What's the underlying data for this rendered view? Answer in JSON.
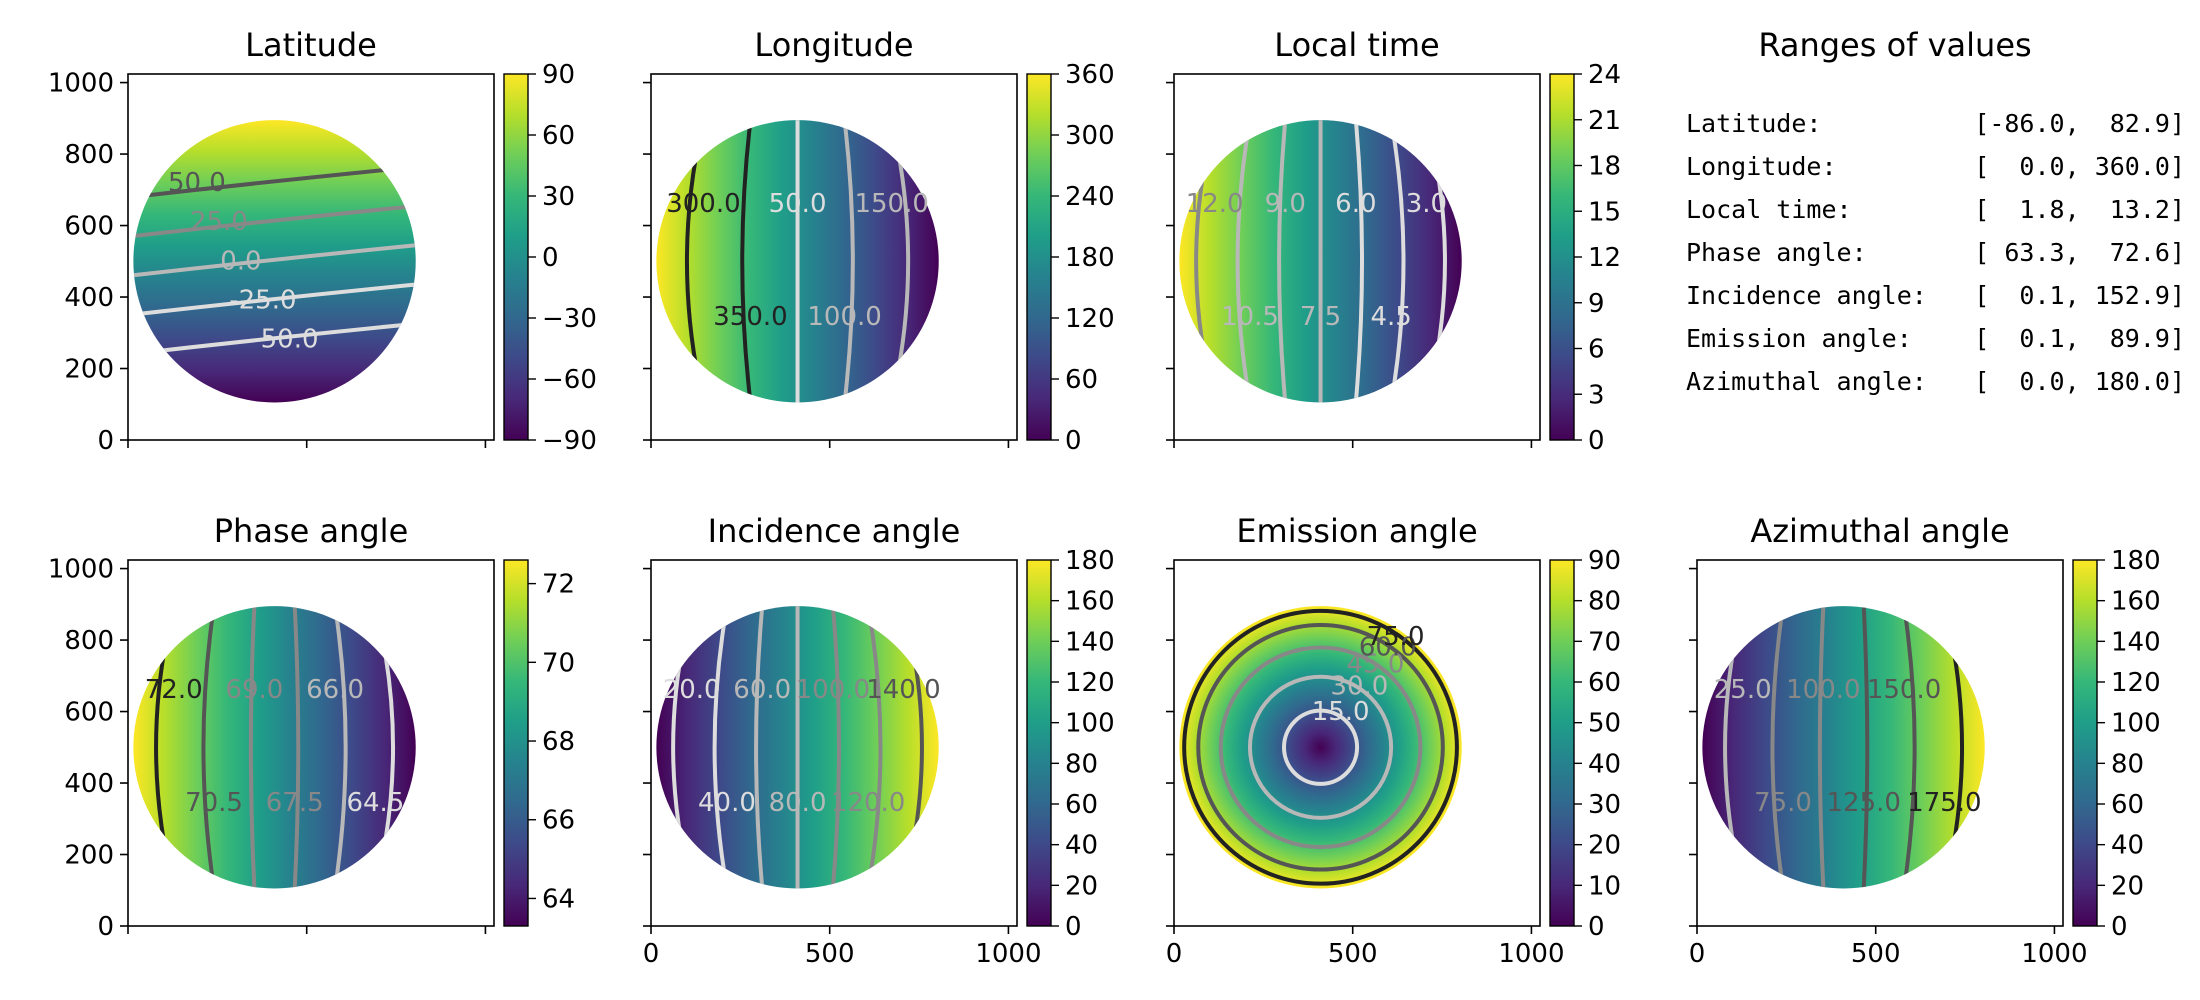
{
  "ranges_panel": {
    "title": "Ranges of values",
    "rows": [
      {
        "label": "Latitude:",
        "value": "[-86.0,  82.9]"
      },
      {
        "label": "Longitude:",
        "value": "[  0.0, 360.0]"
      },
      {
        "label": "Local time:",
        "value": "[  1.8,  13.2]"
      },
      {
        "label": "Phase angle:",
        "value": "[ 63.3,  72.6]"
      },
      {
        "label": "Incidence angle:",
        "value": "[  0.1, 152.9]"
      },
      {
        "label": "Emission angle:",
        "value": "[  0.1,  89.9]"
      },
      {
        "label": "Azimuthal angle:",
        "value": "[  0.0, 180.0]"
      }
    ]
  },
  "colormap": "viridis",
  "contour_colors": [
    "#222222",
    "#555555",
    "#888888",
    "#b8b8b8",
    "#dddddd"
  ],
  "chart_data": [
    {
      "type": "heatmap",
      "title": "Latitude",
      "xlim": [
        0,
        1024
      ],
      "ylim": [
        0,
        1024
      ],
      "xticks": [
        "",
        "",
        ""
      ],
      "yticks": [
        "0",
        "200",
        "400",
        "600",
        "800",
        "1000"
      ],
      "colorbar": {
        "min": -90,
        "max": 90,
        "ticks": [
          "90",
          "60",
          "30",
          "0",
          "−30",
          "−60",
          "−90"
        ]
      },
      "disk": {
        "center": [
          410,
          500
        ],
        "radius": 395
      },
      "contours": [
        {
          "label": "50.0",
          "level": 50,
          "shade": 1
        },
        {
          "label": "25.0",
          "level": 25,
          "shade": 2
        },
        {
          "label": "0.0",
          "level": 0,
          "shade": 3
        },
        {
          "label": "-25.0",
          "level": -25,
          "shade": 4
        },
        {
          "label": "-50.0",
          "level": -50,
          "shade": 4
        }
      ]
    },
    {
      "type": "heatmap",
      "title": "Longitude",
      "xlim": [
        0,
        1024
      ],
      "ylim": [
        0,
        1024
      ],
      "xticks": [
        "",
        "",
        ""
      ],
      "yticks": [
        "",
        "",
        "",
        "",
        "",
        ""
      ],
      "colorbar": {
        "min": 0,
        "max": 360,
        "ticks": [
          "360",
          "300",
          "240",
          "180",
          "120",
          "60",
          "0"
        ]
      },
      "disk": {
        "center": [
          410,
          500
        ],
        "radius": 395
      },
      "contours": [
        {
          "label": "300.0",
          "level": 300,
          "shade": 0
        },
        {
          "label": "350.0",
          "level": 350,
          "shade": 0
        },
        {
          "label": "50.0",
          "level": 50,
          "shade": 4
        },
        {
          "label": "100.0",
          "level": 100,
          "shade": 3
        },
        {
          "label": "150.0",
          "level": 150,
          "shade": 3
        }
      ]
    },
    {
      "type": "heatmap",
      "title": "Local time",
      "xlim": [
        0,
        1024
      ],
      "ylim": [
        0,
        1024
      ],
      "xticks": [
        "",
        "",
        ""
      ],
      "yticks": [
        "",
        "",
        "",
        "",
        "",
        ""
      ],
      "colorbar": {
        "min": 0,
        "max": 24,
        "ticks": [
          "24",
          "21",
          "18",
          "15",
          "12",
          "9",
          "6",
          "3",
          "0"
        ]
      },
      "disk": {
        "center": [
          410,
          500
        ],
        "radius": 395
      },
      "contours": [
        {
          "label": "12.0",
          "level": 12,
          "shade": 2
        },
        {
          "label": "10.5",
          "level": 10.5,
          "shade": 3
        },
        {
          "label": "9.0",
          "level": 9,
          "shade": 3
        },
        {
          "label": "7.5",
          "level": 7.5,
          "shade": 3
        },
        {
          "label": "6.0",
          "level": 6,
          "shade": 4
        },
        {
          "label": "4.5",
          "level": 4.5,
          "shade": 4
        },
        {
          "label": "3.0",
          "level": 3,
          "shade": 4
        }
      ]
    },
    {
      "type": "heatmap",
      "title": "Phase angle",
      "xlim": [
        0,
        1024
      ],
      "ylim": [
        0,
        1024
      ],
      "xticks": [
        "",
        "",
        ""
      ],
      "yticks": [
        "0",
        "200",
        "400",
        "600",
        "800",
        "1000"
      ],
      "colorbar": {
        "min": 63.3,
        "max": 72.6,
        "ticks": [
          "72",
          "70",
          "68",
          "66",
          "64"
        ],
        "tick_values": [
          72,
          70,
          68,
          66,
          64
        ]
      },
      "disk": {
        "center": [
          410,
          500
        ],
        "radius": 395
      },
      "contours": [
        {
          "label": "72.0",
          "level": 72,
          "shade": 0
        },
        {
          "label": "70.5",
          "level": 70.5,
          "shade": 1
        },
        {
          "label": "69.0",
          "level": 69,
          "shade": 2
        },
        {
          "label": "67.5",
          "level": 67.5,
          "shade": 2
        },
        {
          "label": "66.0",
          "level": 66,
          "shade": 3
        },
        {
          "label": "64.5",
          "level": 64.5,
          "shade": 4
        }
      ]
    },
    {
      "type": "heatmap",
      "title": "Incidence angle",
      "xlim": [
        0,
        1024
      ],
      "ylim": [
        0,
        1024
      ],
      "xticks": [
        "0",
        "500",
        "1000"
      ],
      "yticks": [
        "",
        "",
        "",
        "",
        "",
        ""
      ],
      "colorbar": {
        "min": 0,
        "max": 180,
        "ticks": [
          "180",
          "160",
          "140",
          "120",
          "100",
          "80",
          "60",
          "40",
          "20",
          "0"
        ]
      },
      "disk": {
        "center": [
          410,
          500
        ],
        "radius": 395
      },
      "contours": [
        {
          "label": "20.0",
          "level": 20,
          "shade": 4
        },
        {
          "label": "40.0",
          "level": 40,
          "shade": 4
        },
        {
          "label": "60.0",
          "level": 60,
          "shade": 3
        },
        {
          "label": "80.0",
          "level": 80,
          "shade": 3
        },
        {
          "label": "100.0",
          "level": 100,
          "shade": 2
        },
        {
          "label": "120.0",
          "level": 120,
          "shade": 2
        },
        {
          "label": "140.0",
          "level": 140,
          "shade": 1
        }
      ]
    },
    {
      "type": "heatmap",
      "title": "Emission angle",
      "xlim": [
        0,
        1024
      ],
      "ylim": [
        0,
        1024
      ],
      "xticks": [
        "0",
        "500",
        "1000"
      ],
      "yticks": [
        "",
        "",
        "",
        "",
        "",
        ""
      ],
      "colorbar": {
        "min": 0,
        "max": 90,
        "ticks": [
          "90",
          "80",
          "70",
          "60",
          "50",
          "40",
          "30",
          "20",
          "10",
          "0"
        ]
      },
      "disk": {
        "center": [
          410,
          500
        ],
        "radius": 395
      },
      "contours": [
        {
          "label": "15.0",
          "level": 15,
          "shade": 4
        },
        {
          "label": "30.0",
          "level": 30,
          "shade": 3
        },
        {
          "label": "45.0",
          "level": 45,
          "shade": 2
        },
        {
          "label": "60.0",
          "level": 60,
          "shade": 1
        },
        {
          "label": "75.0",
          "level": 75,
          "shade": 0
        }
      ]
    },
    {
      "type": "heatmap",
      "title": "Azimuthal angle",
      "xlim": [
        0,
        1024
      ],
      "ylim": [
        0,
        1024
      ],
      "xticks": [
        "0",
        "500",
        "1000"
      ],
      "yticks": [
        "",
        "",
        "",
        "",
        "",
        ""
      ],
      "colorbar": {
        "min": 0,
        "max": 180,
        "ticks": [
          "180",
          "160",
          "140",
          "120",
          "100",
          "80",
          "60",
          "40",
          "20",
          "0"
        ]
      },
      "disk": {
        "center": [
          410,
          500
        ],
        "radius": 395
      },
      "contours": [
        {
          "label": "25.0",
          "level": 25,
          "shade": 3
        },
        {
          "label": "75.0",
          "level": 75,
          "shade": 2
        },
        {
          "label": "100.0",
          "level": 100,
          "shade": 2
        },
        {
          "label": "125.0",
          "level": 125,
          "shade": 1
        },
        {
          "label": "150.0",
          "level": 150,
          "shade": 1
        },
        {
          "label": "175.0",
          "level": 175,
          "shade": 0
        }
      ]
    }
  ]
}
